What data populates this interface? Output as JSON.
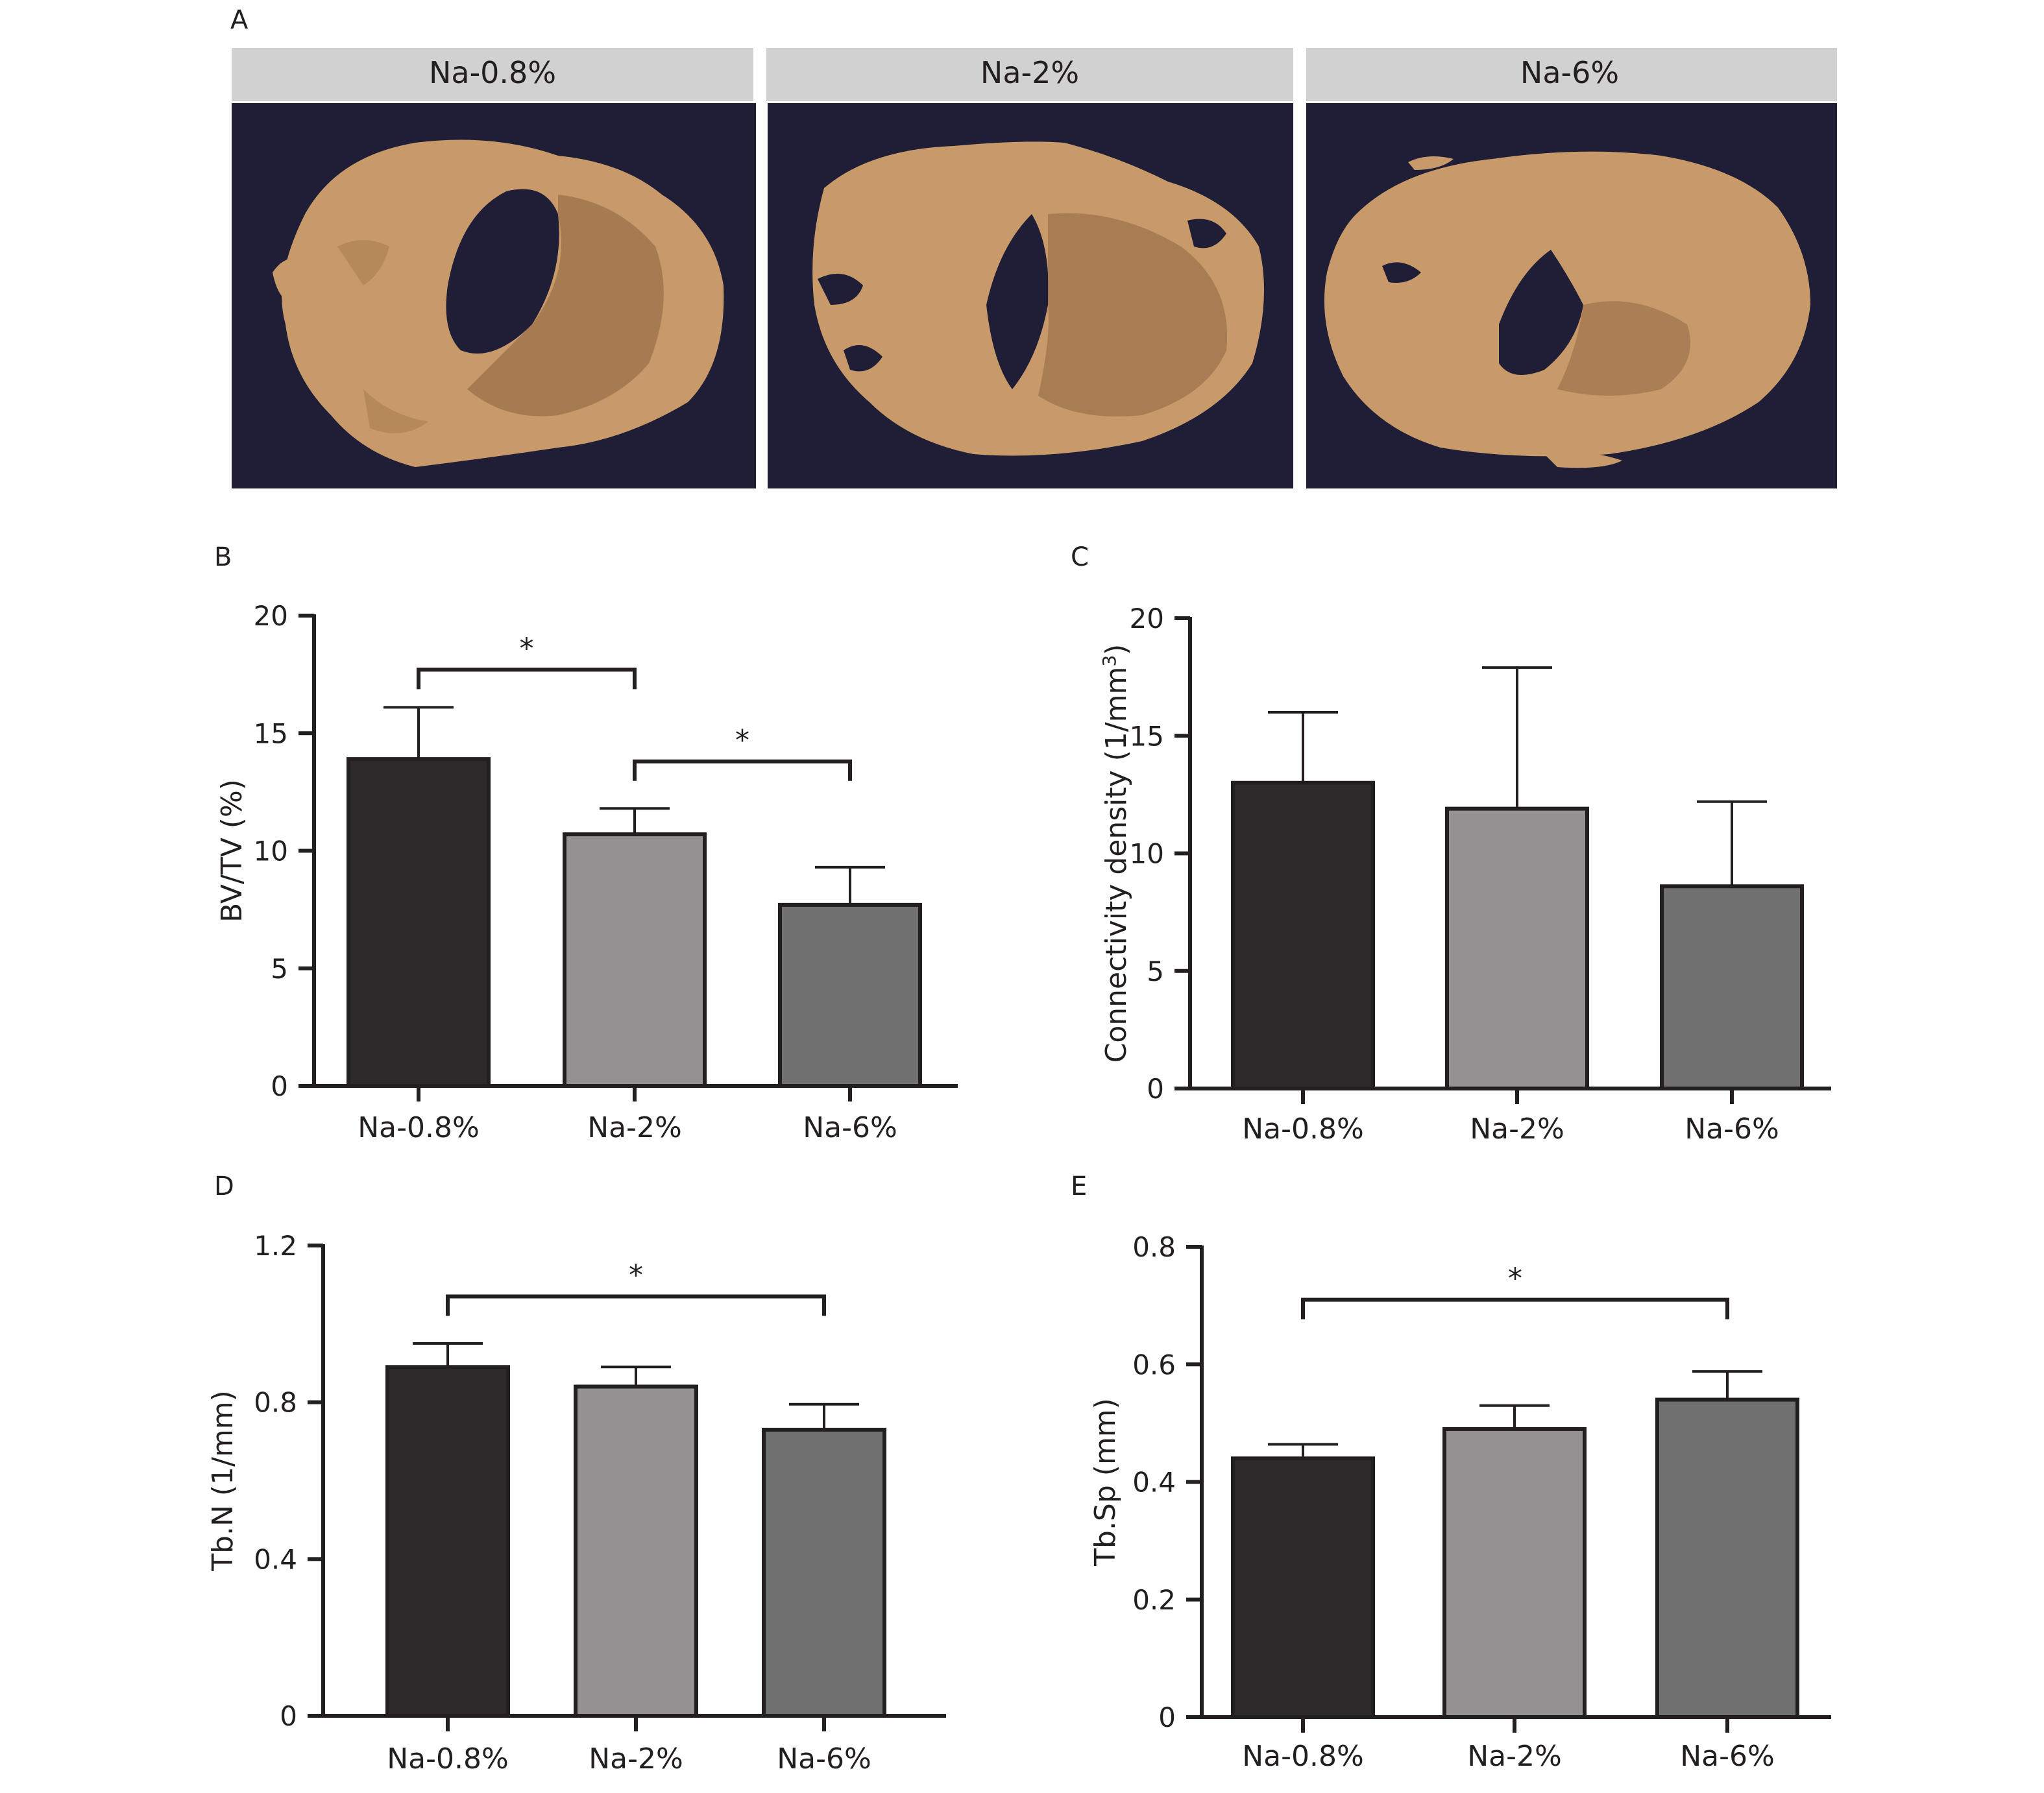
{
  "panel_a": {
    "letter": "A",
    "labels": [
      "Na-0.8%",
      "Na-2%",
      "Na-6%"
    ],
    "colors": {
      "header": "#d1d1d1",
      "background": "#1f1e36",
      "bone": "#c89a6a",
      "bone_shade": "#a27850"
    }
  },
  "chart_data": [
    {
      "id": "B",
      "type": "bar",
      "letter": "B",
      "categories": [
        "Na-0.8%",
        "Na-2%",
        "Na-6%"
      ],
      "values": [
        13.9,
        10.7,
        7.7
      ],
      "errors": [
        2.2,
        1.1,
        1.6
      ],
      "ylabel": "BV/TV (%)",
      "ylim": [
        0,
        20
      ],
      "yticks": [
        0,
        5,
        10,
        15,
        20
      ],
      "ytick_labels": [
        "0",
        "5",
        "10",
        "15",
        "20"
      ],
      "bar_colors": [
        "#2c2a2a",
        "#939191",
        "#717071"
      ],
      "significance": [
        {
          "from": 0,
          "to": 1,
          "y": 17.7,
          "label": "*"
        },
        {
          "from": 1,
          "to": 2,
          "y": 13.8,
          "label": "*"
        }
      ]
    },
    {
      "id": "C",
      "type": "bar",
      "letter": "C",
      "categories": [
        "Na-0.8%",
        "Na-2%",
        "Na-6%"
      ],
      "values": [
        13.0,
        11.9,
        8.6
      ],
      "errors": [
        3.0,
        6.0,
        3.6
      ],
      "ylabel": "Connectivity density (1/mm",
      "ylabel_sup": "3",
      "ylabel_end": ")",
      "ylim": [
        0,
        20
      ],
      "yticks": [
        0,
        5,
        10,
        15,
        20
      ],
      "ytick_labels": [
        "0",
        "5",
        "10",
        "15",
        "20"
      ],
      "bar_colors": [
        "#2c2a2a",
        "#939191",
        "#717071"
      ],
      "significance": []
    },
    {
      "id": "D",
      "type": "bar",
      "letter": "D",
      "categories": [
        "Na-0.8%",
        "Na-2%",
        "Na-6%"
      ],
      "values": [
        0.89,
        0.84,
        0.73
      ],
      "errors": [
        0.06,
        0.05,
        0.065
      ],
      "ylabel": "Tb.N (1/mm)",
      "ylim": [
        0,
        1.2
      ],
      "yticks": [
        0,
        0.4,
        0.8,
        1.2
      ],
      "ytick_labels": [
        "0",
        "0.4",
        "0.8",
        "1.2"
      ],
      "bar_colors": [
        "#2c2a2a",
        "#939191",
        "#717071"
      ],
      "significance": [
        {
          "from": 0,
          "to": 2,
          "y": 1.07,
          "label": "*"
        }
      ]
    },
    {
      "id": "E",
      "type": "bar",
      "letter": "E",
      "categories": [
        "Na-0.8%",
        "Na-2%",
        "Na-6%"
      ],
      "values": [
        0.44,
        0.49,
        0.54
      ],
      "errors": [
        0.024,
        0.04,
        0.048
      ],
      "ylabel": "Tb.Sp (mm)",
      "ylim": [
        0,
        0.8
      ],
      "yticks": [
        0,
        0.2,
        0.4,
        0.6,
        0.8
      ],
      "ytick_labels": [
        "0",
        "0.2",
        "0.4",
        "0.6",
        "0.8"
      ],
      "bar_colors": [
        "#2c2a2a",
        "#939191",
        "#717071"
      ],
      "significance": [
        {
          "from": 0,
          "to": 2,
          "y": 0.71,
          "label": "*"
        }
      ]
    }
  ]
}
